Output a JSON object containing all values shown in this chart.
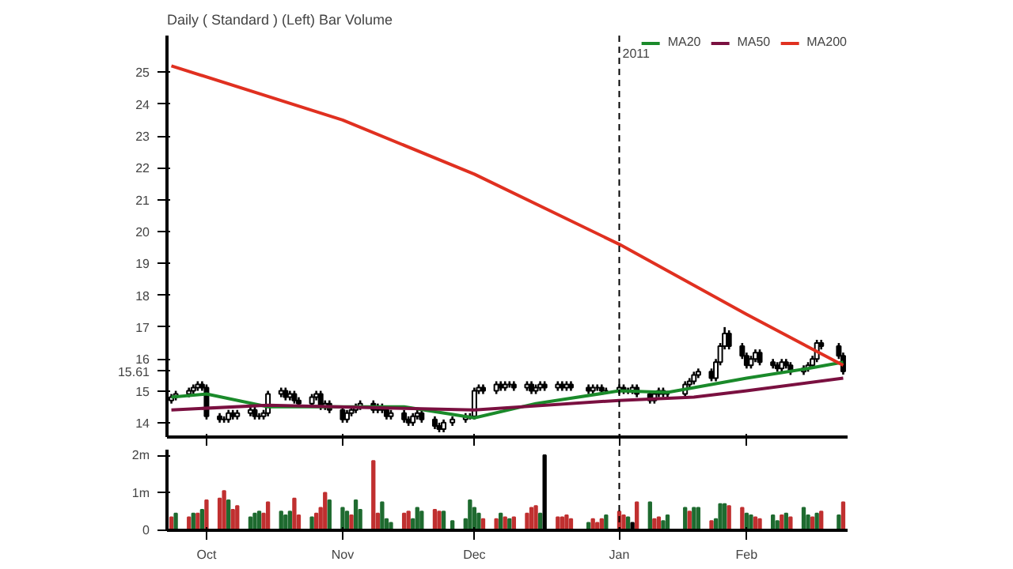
{
  "chart_data": [
    {
      "type": "candlestick",
      "title": "Daily ( Standard )  (Left)    Bar  Volume",
      "color": "#000000",
      "x": [
        "2010-09-23",
        "2010-09-24",
        "2010-09-27",
        "2010-09-28",
        "2010-09-29",
        "2010-09-30",
        "2010-10-01",
        "2010-10-04",
        "2010-10-05",
        "2010-10-06",
        "2010-10-07",
        "2010-10-08",
        "2010-10-11",
        "2010-10-12",
        "2010-10-13",
        "2010-10-14",
        "2010-10-15",
        "2010-10-18",
        "2010-10-19",
        "2010-10-20",
        "2010-10-21",
        "2010-10-22",
        "2010-10-25",
        "2010-10-26",
        "2010-10-27",
        "2010-10-28",
        "2010-10-29",
        "2010-11-01",
        "2010-11-02",
        "2010-11-03",
        "2010-11-04",
        "2010-11-05",
        "2010-11-08",
        "2010-11-09",
        "2010-11-10",
        "2010-11-11",
        "2010-11-12",
        "2010-11-15",
        "2010-11-16",
        "2010-11-17",
        "2010-11-18",
        "2010-11-19",
        "2010-11-22",
        "2010-11-23",
        "2010-11-24",
        "2010-11-26",
        "2010-11-29",
        "2010-11-30",
        "2010-12-01",
        "2010-12-02",
        "2010-12-03",
        "2010-12-06",
        "2010-12-07",
        "2010-12-08",
        "2010-12-09",
        "2010-12-10",
        "2010-12-13",
        "2010-12-14",
        "2010-12-15",
        "2010-12-16",
        "2010-12-17",
        "2010-12-20",
        "2010-12-21",
        "2010-12-22",
        "2010-12-23",
        "2010-12-27",
        "2010-12-28",
        "2010-12-29",
        "2010-12-30",
        "2010-12-31",
        "2011-01-03",
        "2011-01-04",
        "2011-01-05",
        "2011-01-06",
        "2011-01-07",
        "2011-01-10",
        "2011-01-11",
        "2011-01-12",
        "2011-01-13",
        "2011-01-14",
        "2011-01-18",
        "2011-01-19",
        "2011-01-20",
        "2011-01-21",
        "2011-01-24",
        "2011-01-25",
        "2011-01-26",
        "2011-01-27",
        "2011-01-28",
        "2011-01-31",
        "2011-02-01",
        "2011-02-02",
        "2011-02-03",
        "2011-02-04",
        "2011-02-07",
        "2011-02-08",
        "2011-02-09",
        "2011-02-10",
        "2011-02-11",
        "2011-02-14",
        "2011-02-15",
        "2011-02-16",
        "2011-02-17",
        "2011-02-18",
        "2011-02-22",
        "2011-02-23"
      ],
      "ohlc": [
        [
          14.7,
          14.9,
          14.6,
          14.8
        ],
        [
          14.8,
          15.0,
          14.7,
          14.9
        ],
        [
          14.9,
          15.1,
          14.8,
          15.0
        ],
        [
          15.0,
          15.2,
          14.9,
          15.1
        ],
        [
          15.1,
          15.3,
          15.0,
          15.2
        ],
        [
          15.2,
          15.3,
          15.0,
          15.1
        ],
        [
          15.1,
          15.2,
          14.1,
          14.2
        ],
        [
          14.2,
          14.3,
          14.0,
          14.1
        ],
        [
          14.1,
          14.2,
          14.0,
          14.1
        ],
        [
          14.1,
          14.4,
          14.0,
          14.3
        ],
        [
          14.3,
          14.4,
          14.1,
          14.2
        ],
        [
          14.2,
          14.4,
          14.1,
          14.3
        ],
        [
          14.3,
          14.5,
          14.2,
          14.4
        ],
        [
          14.4,
          14.5,
          14.1,
          14.2
        ],
        [
          14.2,
          14.3,
          14.1,
          14.2
        ],
        [
          14.2,
          14.4,
          14.1,
          14.3
        ],
        [
          14.3,
          15.0,
          14.2,
          14.9
        ],
        [
          14.9,
          15.1,
          14.8,
          15.0
        ],
        [
          15.0,
          15.1,
          14.7,
          14.8
        ],
        [
          14.8,
          15.0,
          14.7,
          14.9
        ],
        [
          14.9,
          15.0,
          14.6,
          14.7
        ],
        [
          14.7,
          14.8,
          14.5,
          14.6
        ],
        [
          14.6,
          14.9,
          14.5,
          14.8
        ],
        [
          14.8,
          15.0,
          14.7,
          14.9
        ],
        [
          14.9,
          15.0,
          14.4,
          14.5
        ],
        [
          14.5,
          14.7,
          14.4,
          14.6
        ],
        [
          14.6,
          14.7,
          14.3,
          14.4
        ],
        [
          14.4,
          14.5,
          14.0,
          14.1
        ],
        [
          14.1,
          14.4,
          14.0,
          14.3
        ],
        [
          14.3,
          14.5,
          14.2,
          14.4
        ],
        [
          14.4,
          14.6,
          14.3,
          14.5
        ],
        [
          14.5,
          14.7,
          14.4,
          14.6
        ],
        [
          14.6,
          14.7,
          14.3,
          14.4
        ],
        [
          14.4,
          14.6,
          14.3,
          14.5
        ],
        [
          14.5,
          14.6,
          14.3,
          14.4
        ],
        [
          14.4,
          14.5,
          14.1,
          14.2
        ],
        [
          14.2,
          14.4,
          14.1,
          14.3
        ],
        [
          14.3,
          14.4,
          14.0,
          14.1
        ],
        [
          14.1,
          14.2,
          13.9,
          14.0
        ],
        [
          14.0,
          14.3,
          13.9,
          14.2
        ],
        [
          14.2,
          14.4,
          14.1,
          14.3
        ],
        [
          14.3,
          14.4,
          14.0,
          14.1
        ],
        [
          14.1,
          14.2,
          13.8,
          13.9
        ],
        [
          13.9,
          14.0,
          13.7,
          13.8
        ],
        [
          13.8,
          14.1,
          13.7,
          14.0
        ],
        [
          14.0,
          14.2,
          13.9,
          14.1
        ],
        [
          14.1,
          14.3,
          14.0,
          14.2
        ],
        [
          14.2,
          14.3,
          14.1,
          14.2
        ],
        [
          14.2,
          15.1,
          14.1,
          15.0
        ],
        [
          15.0,
          15.2,
          14.9,
          15.1
        ],
        [
          15.1,
          15.2,
          14.9,
          15.0
        ],
        [
          15.0,
          15.3,
          14.9,
          15.2
        ],
        [
          15.2,
          15.3,
          15.0,
          15.1
        ],
        [
          15.1,
          15.3,
          15.0,
          15.2
        ],
        [
          15.2,
          15.3,
          15.1,
          15.2
        ],
        [
          15.2,
          15.3,
          15.0,
          15.1
        ],
        [
          15.1,
          15.3,
          15.0,
          15.2
        ],
        [
          15.2,
          15.3,
          14.9,
          15.0
        ],
        [
          15.0,
          15.2,
          14.9,
          15.1
        ],
        [
          15.1,
          15.3,
          15.0,
          15.2
        ],
        [
          15.2,
          15.3,
          15.0,
          15.1
        ],
        [
          15.1,
          15.3,
          15.0,
          15.2
        ],
        [
          15.2,
          15.3,
          15.0,
          15.1
        ],
        [
          15.1,
          15.3,
          15.0,
          15.2
        ],
        [
          15.2,
          15.3,
          15.0,
          15.1
        ],
        [
          15.1,
          15.2,
          14.9,
          15.0
        ],
        [
          15.0,
          15.2,
          14.9,
          15.1
        ],
        [
          15.1,
          15.2,
          15.0,
          15.1
        ],
        [
          15.1,
          15.2,
          14.9,
          15.0
        ],
        [
          15.0,
          15.1,
          14.9,
          15.0
        ],
        [
          15.0,
          15.2,
          14.9,
          15.1
        ],
        [
          15.1,
          15.2,
          14.9,
          15.0
        ],
        [
          15.0,
          15.1,
          14.9,
          15.0
        ],
        [
          15.0,
          15.2,
          14.9,
          15.1
        ],
        [
          15.1,
          15.2,
          14.8,
          14.9
        ],
        [
          14.9,
          15.0,
          14.6,
          14.7
        ],
        [
          14.7,
          15.0,
          14.6,
          14.9
        ],
        [
          14.9,
          15.1,
          14.8,
          15.0
        ],
        [
          15.0,
          15.1,
          14.8,
          14.9
        ],
        [
          14.9,
          15.0,
          14.8,
          14.9
        ],
        [
          14.9,
          15.3,
          14.8,
          15.2
        ],
        [
          15.2,
          15.4,
          15.1,
          15.3
        ],
        [
          15.3,
          15.6,
          15.2,
          15.5
        ],
        [
          15.5,
          15.7,
          15.4,
          15.6
        ],
        [
          15.6,
          15.7,
          15.3,
          15.4
        ],
        [
          15.4,
          16.0,
          15.3,
          15.9
        ],
        [
          15.9,
          16.5,
          15.8,
          16.4
        ],
        [
          16.4,
          17.0,
          16.3,
          16.8
        ],
        [
          16.8,
          16.9,
          16.3,
          16.4
        ],
        [
          16.4,
          16.5,
          16.0,
          16.1
        ],
        [
          16.1,
          16.2,
          15.7,
          15.8
        ],
        [
          15.8,
          16.1,
          15.7,
          16.0
        ],
        [
          16.0,
          16.3,
          15.9,
          16.2
        ],
        [
          16.2,
          16.3,
          15.8,
          15.9
        ],
        [
          15.9,
          16.0,
          15.7,
          15.8
        ],
        [
          15.8,
          15.9,
          15.6,
          15.7
        ],
        [
          15.7,
          16.0,
          15.6,
          15.9
        ],
        [
          15.9,
          16.0,
          15.7,
          15.8
        ],
        [
          15.8,
          15.9,
          15.5,
          15.6
        ],
        [
          15.6,
          15.8,
          15.5,
          15.7
        ],
        [
          15.7,
          15.9,
          15.6,
          15.8
        ],
        [
          15.8,
          16.1,
          15.7,
          16.0
        ],
        [
          16.0,
          16.6,
          15.9,
          16.5
        ],
        [
          16.5,
          16.6,
          16.3,
          16.4
        ],
        [
          16.4,
          16.5,
          16.0,
          16.1
        ],
        [
          16.1,
          16.2,
          15.51,
          15.61
        ]
      ],
      "series": [
        {
          "type": "line",
          "name": "MA20",
          "color": "#1a8a2a",
          "x": [
            "2010-09-23",
            "2010-10-01",
            "2010-10-15",
            "2010-11-01",
            "2010-11-15",
            "2010-12-01",
            "2010-12-15",
            "2011-01-03",
            "2011-01-14",
            "2011-02-01",
            "2011-02-15",
            "2011-02-23"
          ],
          "values": [
            14.8,
            14.9,
            14.5,
            14.5,
            14.5,
            14.15,
            14.6,
            15.0,
            14.95,
            15.4,
            15.7,
            15.9
          ]
        },
        {
          "type": "line",
          "name": "MA50",
          "color": "#7a1040",
          "x": [
            "2010-09-23",
            "2010-10-15",
            "2010-11-15",
            "2010-12-01",
            "2011-01-03",
            "2011-01-20",
            "2011-02-01",
            "2011-02-23"
          ],
          "values": [
            14.4,
            14.55,
            14.45,
            14.4,
            14.7,
            14.8,
            15.0,
            15.4
          ]
        },
        {
          "type": "line",
          "name": "MA200",
          "color": "#e03020",
          "x": [
            "2010-09-23",
            "2010-11-01",
            "2010-12-01",
            "2011-01-03",
            "2011-02-01",
            "2011-02-23"
          ],
          "values": [
            25.2,
            23.5,
            21.8,
            19.6,
            17.4,
            15.8
          ]
        }
      ],
      "xlim": [
        "2010-09-22",
        "2011-02-24"
      ],
      "ylim": [
        13.55,
        26.15
      ],
      "yticks": [
        14,
        15,
        {
          "value": 15.61,
          "label": "15.61"
        },
        16,
        17,
        18,
        19,
        20,
        21,
        22,
        23,
        24,
        25
      ],
      "xticks": [
        {
          "value": "2010-10-01",
          "label": null
        },
        {
          "value": "2010-11-01",
          "label": null
        },
        {
          "value": "2010-12-01",
          "label": null
        },
        {
          "value": "2011-01-03",
          "label": null
        },
        {
          "value": "2011-02-01",
          "label": null
        }
      ],
      "tick_labels": "y",
      "legend": "top right",
      "grid": false,
      "ref_lines": [
        {
          "axis": "x",
          "value": "2011-01-03",
          "label": "2011",
          "color": "#000000",
          "line_style": "dashed"
        }
      ]
    },
    {
      "type": "bar",
      "x": [
        "2010-09-23",
        "2010-09-24",
        "2010-09-27",
        "2010-09-28",
        "2010-09-29",
        "2010-09-30",
        "2010-10-01",
        "2010-10-04",
        "2010-10-05",
        "2010-10-06",
        "2010-10-07",
        "2010-10-08",
        "2010-10-11",
        "2010-10-12",
        "2010-10-13",
        "2010-10-14",
        "2010-10-15",
        "2010-10-18",
        "2010-10-19",
        "2010-10-20",
        "2010-10-21",
        "2010-10-22",
        "2010-10-25",
        "2010-10-26",
        "2010-10-27",
        "2010-10-28",
        "2010-10-29",
        "2010-11-01",
        "2010-11-02",
        "2010-11-03",
        "2010-11-04",
        "2010-11-05",
        "2010-11-08",
        "2010-11-09",
        "2010-11-10",
        "2010-11-11",
        "2010-11-12",
        "2010-11-15",
        "2010-11-16",
        "2010-11-17",
        "2010-11-18",
        "2010-11-19",
        "2010-11-22",
        "2010-11-23",
        "2010-11-24",
        "2010-11-26",
        "2010-11-29",
        "2010-11-30",
        "2010-12-01",
        "2010-12-02",
        "2010-12-03",
        "2010-12-06",
        "2010-12-07",
        "2010-12-08",
        "2010-12-09",
        "2010-12-10",
        "2010-12-13",
        "2010-12-14",
        "2010-12-15",
        "2010-12-16",
        "2010-12-17",
        "2010-12-20",
        "2010-12-21",
        "2010-12-22",
        "2010-12-23",
        "2010-12-27",
        "2010-12-28",
        "2010-12-29",
        "2010-12-30",
        "2010-12-31",
        "2011-01-03",
        "2011-01-04",
        "2011-01-05",
        "2011-01-06",
        "2011-01-07",
        "2011-01-10",
        "2011-01-11",
        "2011-01-12",
        "2011-01-13",
        "2011-01-14",
        "2011-01-18",
        "2011-01-19",
        "2011-01-20",
        "2011-01-21",
        "2011-01-24",
        "2011-01-25",
        "2011-01-26",
        "2011-01-27",
        "2011-01-28",
        "2011-01-31",
        "2011-02-01",
        "2011-02-02",
        "2011-02-03",
        "2011-02-04",
        "2011-02-07",
        "2011-02-08",
        "2011-02-09",
        "2011-02-10",
        "2011-02-11",
        "2011-02-14",
        "2011-02-15",
        "2011-02-16",
        "2011-02-17",
        "2011-02-18",
        "2011-02-22",
        "2011-02-23"
      ],
      "values": [
        0.35,
        0.45,
        0.35,
        0.45,
        0.45,
        0.55,
        0.8,
        0.85,
        1.05,
        0.8,
        0.55,
        0.65,
        0.35,
        0.45,
        0.5,
        0.45,
        0.75,
        0.5,
        0.4,
        0.5,
        0.85,
        0.4,
        0.35,
        0.45,
        0.6,
        1.0,
        0.8,
        0.6,
        0.5,
        0.4,
        0.8,
        0.55,
        1.85,
        0.45,
        0.75,
        0.3,
        0.2,
        0.45,
        0.5,
        0.3,
        0.6,
        0.5,
        0.55,
        0.5,
        0.5,
        0.25,
        0.3,
        0.8,
        0.6,
        0.45,
        0.3,
        0.3,
        0.45,
        0.35,
        0.3,
        0.35,
        0.45,
        0.6,
        0.65,
        0.45,
        2.0,
        0.35,
        0.35,
        0.4,
        0.3,
        0.2,
        0.3,
        0.2,
        0.3,
        0.4,
        0.5,
        0.4,
        0.35,
        0.2,
        0.75,
        0.75,
        0.3,
        0.35,
        0.25,
        0.4,
        0.6,
        0.5,
        0.6,
        0.6,
        0.25,
        0.3,
        0.7,
        0.7,
        0.65,
        0.6,
        0.45,
        0.4,
        0.35,
        0.3,
        0.4,
        0.25,
        0.4,
        0.45,
        0.35,
        0.6,
        0.4,
        0.35,
        0.45,
        0.5,
        0.4,
        0.75
      ],
      "colors": [
        "#c03030",
        "#1f6b30",
        "#c03030",
        "#1f6b30",
        "#c03030",
        "#1f6b30",
        "#c03030",
        "#c03030",
        "#c03030",
        "#1f6b30",
        "#c03030",
        "#c03030",
        "#1f6b30",
        "#1f6b30",
        "#1f6b30",
        "#c03030",
        "#c03030",
        "#1f6b30",
        "#1f6b30",
        "#1f6b30",
        "#c03030",
        "#c03030",
        "#1f6b30",
        "#c03030",
        "#c03030",
        "#c03030",
        "#1f6b30",
        "#1f6b30",
        "#1f6b30",
        "#c03030",
        "#1f6b30",
        "#1f6b30",
        "#c03030",
        "#c03030",
        "#1f6b30",
        "#1f6b30",
        "#1f6b30",
        "#c03030",
        "#c03030",
        "#1f6b30",
        "#1f6b30",
        "#1f6b30",
        "#c03030",
        "#c03030",
        "#1f6b30",
        "#1f6b30",
        "#1f6b30",
        "#1f6b30",
        "#1f6b30",
        "#1f6b30",
        "#c03030",
        "#c03030",
        "#1f6b30",
        "#c03030",
        "#1f6b30",
        "#c03030",
        "#c03030",
        "#c03030",
        "#c03030",
        "#1f6b30",
        "#000000",
        "#c03030",
        "#c03030",
        "#c03030",
        "#c03030",
        "#1f6b30",
        "#c03030",
        "#c03030",
        "#c03030",
        "#1f6b30",
        "#c03030",
        "#c03030",
        "#1f6b30",
        "#000000",
        "#c03030",
        "#1f6b30",
        "#c03030",
        "#c03030",
        "#1f6b30",
        "#1f6b30",
        "#1f6b30",
        "#c03030",
        "#1f6b30",
        "#1f6b30",
        "#c03030",
        "#1f6b30",
        "#1f6b30",
        "#1f6b30",
        "#c03030",
        "#c03030",
        "#1f6b30",
        "#1f6b30",
        "#c03030",
        "#c03030",
        "#1f6b30",
        "#1f6b30",
        "#c03030",
        "#1f6b30",
        "#c03030",
        "#1f6b30",
        "#1f6b30",
        "#c03030",
        "#1f6b30",
        "#c03030",
        "#1f6b30",
        "#c03030"
      ],
      "xlim": [
        "2010-09-22",
        "2011-02-24"
      ],
      "ylim": [
        0,
        2.15
      ],
      "yticks": [
        0,
        {
          "value": 1,
          "label": "1m"
        },
        {
          "value": 2,
          "label": "2m"
        }
      ],
      "xticks": [
        {
          "value": "2010-10-01",
          "label": "Oct"
        },
        {
          "value": "2010-11-01",
          "label": "Nov"
        },
        {
          "value": "2010-12-01",
          "label": "Dec"
        },
        {
          "value": "2011-01-03",
          "label": "Jan"
        },
        {
          "value": "2011-02-01",
          "label": "Feb"
        }
      ],
      "grid": false,
      "ref_lines": [
        {
          "axis": "x",
          "value": "2011-01-03",
          "color": "#000000",
          "line_style": "dashed"
        }
      ]
    }
  ]
}
